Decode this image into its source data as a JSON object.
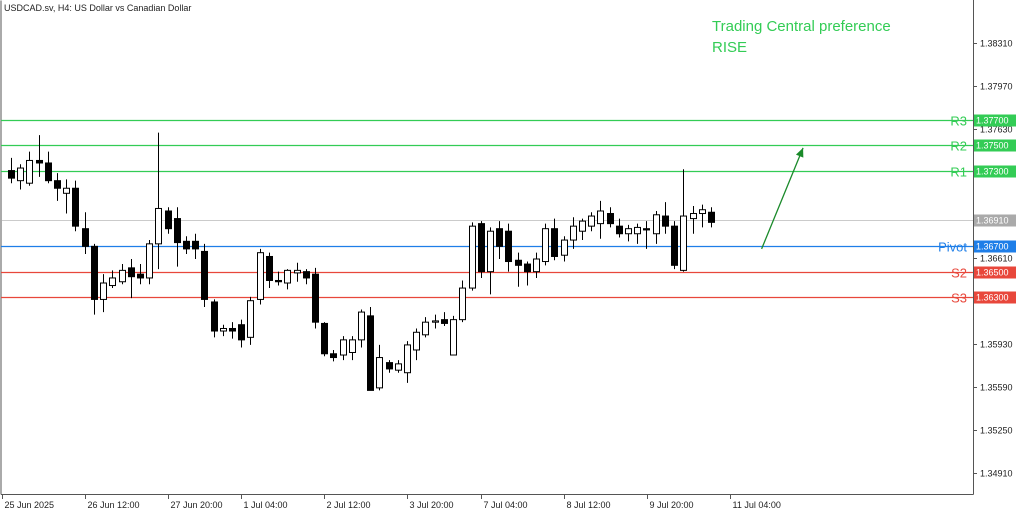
{
  "colors": {
    "resistance": "#33cc55",
    "pivot": "#1e7ee8",
    "support": "#e8473b",
    "arrow": "#1a8a2a",
    "preference_text": "#33cc55",
    "current_price": "#aaaaaa",
    "candle": "#000000"
  },
  "chart_data": {
    "type": "candlestick",
    "title": "USDCAD.sv, H4:  US Dollar vs Canadian Dollar",
    "preference": {
      "line1": "Trading Central preference",
      "line2": "RISE",
      "direction": "up"
    },
    "ylim": [
      1.3474,
      1.3865
    ],
    "y_ticks": [
      {
        "value": 1.3831,
        "label": "1.38310"
      },
      {
        "value": 1.3797,
        "label": "1.37970"
      },
      {
        "value": 1.3763,
        "label": "1.37630"
      },
      {
        "value": 1.3661,
        "label": "1.36610"
      },
      {
        "value": 1.3593,
        "label": "1.35930"
      },
      {
        "value": 1.3559,
        "label": "1.35590"
      },
      {
        "value": 1.3525,
        "label": "1.35250"
      },
      {
        "value": 1.3491,
        "label": "1.34910"
      }
    ],
    "x_labels": [
      {
        "index": 0,
        "label": "25 Jun 2025"
      },
      {
        "index": 9,
        "label": "26 Jun 12:00"
      },
      {
        "index": 18,
        "label": "27 Jun 20:00"
      },
      {
        "index": 26,
        "label": "1 Jul 04:00"
      },
      {
        "index": 35,
        "label": "2 Jul 12:00"
      },
      {
        "index": 44,
        "label": "3 Jul 20:00"
      },
      {
        "index": 52,
        "label": "7 Jul 04:00"
      },
      {
        "index": 61,
        "label": "8 Jul 12:00"
      },
      {
        "index": 70,
        "label": "9 Jul 20:00"
      },
      {
        "index": 79,
        "label": "11 Jul 04:00"
      }
    ],
    "levels": [
      {
        "name": "R3",
        "value": 1.377,
        "label": "1.37700",
        "kind": "resistance"
      },
      {
        "name": "R2",
        "value": 1.375,
        "label": "1.37500",
        "kind": "resistance"
      },
      {
        "name": "R1",
        "value": 1.373,
        "label": "1.37300",
        "kind": "resistance"
      },
      {
        "name": "Pivot",
        "value": 1.367,
        "label": "1.36700",
        "kind": "pivot"
      },
      {
        "name": "S2",
        "value": 1.365,
        "label": "1.36500",
        "kind": "support"
      },
      {
        "name": "S3",
        "value": 1.363,
        "label": "1.36300",
        "kind": "support"
      }
    ],
    "current_price": {
      "value": 1.3691,
      "label": "1.36910"
    },
    "arrow": {
      "from_index": 81.5,
      "from_value": 1.3668,
      "to_index": 86,
      "to_value": 1.3748
    },
    "candles": [
      {
        "o": 1.373,
        "h": 1.374,
        "l": 1.372,
        "c": 1.3724
      },
      {
        "o": 1.3722,
        "h": 1.3735,
        "l": 1.3715,
        "c": 1.3732
      },
      {
        "o": 1.372,
        "h": 1.3745,
        "l": 1.3718,
        "c": 1.3738
      },
      {
        "o": 1.3738,
        "h": 1.3758,
        "l": 1.3725,
        "c": 1.3736
      },
      {
        "o": 1.3736,
        "h": 1.3745,
        "l": 1.372,
        "c": 1.3722
      },
      {
        "o": 1.3722,
        "h": 1.3728,
        "l": 1.3706,
        "c": 1.3716
      },
      {
        "o": 1.3712,
        "h": 1.3723,
        "l": 1.3696,
        "c": 1.3716
      },
      {
        "o": 1.3716,
        "h": 1.3722,
        "l": 1.3682,
        "c": 1.3686
      },
      {
        "o": 1.3684,
        "h": 1.3697,
        "l": 1.3664,
        "c": 1.367
      },
      {
        "o": 1.367,
        "h": 1.3672,
        "l": 1.3616,
        "c": 1.3628
      },
      {
        "o": 1.3628,
        "h": 1.3648,
        "l": 1.3618,
        "c": 1.3641
      },
      {
        "o": 1.3639,
        "h": 1.3651,
        "l": 1.3637,
        "c": 1.3645
      },
      {
        "o": 1.3642,
        "h": 1.3656,
        "l": 1.364,
        "c": 1.3651
      },
      {
        "o": 1.3653,
        "h": 1.366,
        "l": 1.3629,
        "c": 1.3646
      },
      {
        "o": 1.3648,
        "h": 1.3656,
        "l": 1.364,
        "c": 1.3645
      },
      {
        "o": 1.3645,
        "h": 1.3675,
        "l": 1.364,
        "c": 1.3672
      },
      {
        "o": 1.3672,
        "h": 1.376,
        "l": 1.3652,
        "c": 1.37
      },
      {
        "o": 1.3698,
        "h": 1.3701,
        "l": 1.368,
        "c": 1.3684
      },
      {
        "o": 1.3692,
        "h": 1.3701,
        "l": 1.3654,
        "c": 1.3673
      },
      {
        "o": 1.3674,
        "h": 1.3678,
        "l": 1.3664,
        "c": 1.3668
      },
      {
        "o": 1.3674,
        "h": 1.368,
        "l": 1.366,
        "c": 1.3668
      },
      {
        "o": 1.3666,
        "h": 1.3672,
        "l": 1.3622,
        "c": 1.3628
      },
      {
        "o": 1.3626,
        "h": 1.3628,
        "l": 1.3598,
        "c": 1.3603
      },
      {
        "o": 1.3603,
        "h": 1.3608,
        "l": 1.3599,
        "c": 1.3605
      },
      {
        "o": 1.3605,
        "h": 1.361,
        "l": 1.3597,
        "c": 1.3603
      },
      {
        "o": 1.3608,
        "h": 1.3612,
        "l": 1.359,
        "c": 1.3596
      },
      {
        "o": 1.3598,
        "h": 1.363,
        "l": 1.3592,
        "c": 1.3627
      },
      {
        "o": 1.3628,
        "h": 1.3668,
        "l": 1.3624,
        "c": 1.3665
      },
      {
        "o": 1.3662,
        "h": 1.3665,
        "l": 1.3637,
        "c": 1.3643
      },
      {
        "o": 1.3643,
        "h": 1.365,
        "l": 1.3639,
        "c": 1.3642
      },
      {
        "o": 1.3641,
        "h": 1.3652,
        "l": 1.3636,
        "c": 1.3651
      },
      {
        "o": 1.3649,
        "h": 1.3657,
        "l": 1.3642,
        "c": 1.3651
      },
      {
        "o": 1.365,
        "h": 1.3652,
        "l": 1.364,
        "c": 1.3645
      },
      {
        "o": 1.3648,
        "h": 1.3653,
        "l": 1.3605,
        "c": 1.361
      },
      {
        "o": 1.3609,
        "h": 1.361,
        "l": 1.3583,
        "c": 1.3585
      },
      {
        "o": 1.3585,
        "h": 1.3588,
        "l": 1.3579,
        "c": 1.3582
      },
      {
        "o": 1.3584,
        "h": 1.3599,
        "l": 1.358,
        "c": 1.3596
      },
      {
        "o": 1.3586,
        "h": 1.3599,
        "l": 1.358,
        "c": 1.3596
      },
      {
        "o": 1.3596,
        "h": 1.362,
        "l": 1.359,
        "c": 1.3618
      },
      {
        "o": 1.3615,
        "h": 1.3622,
        "l": 1.3556,
        "c": 1.3556
      },
      {
        "o": 1.3558,
        "h": 1.3592,
        "l": 1.3556,
        "c": 1.3582
      },
      {
        "o": 1.3578,
        "h": 1.358,
        "l": 1.357,
        "c": 1.3573
      },
      {
        "o": 1.3572,
        "h": 1.358,
        "l": 1.357,
        "c": 1.3577
      },
      {
        "o": 1.357,
        "h": 1.3595,
        "l": 1.3562,
        "c": 1.3592
      },
      {
        "o": 1.3588,
        "h": 1.3605,
        "l": 1.358,
        "c": 1.3602
      },
      {
        "o": 1.36,
        "h": 1.3614,
        "l": 1.3598,
        "c": 1.361
      },
      {
        "o": 1.361,
        "h": 1.3616,
        "l": 1.3605,
        "c": 1.3611
      },
      {
        "o": 1.3612,
        "h": 1.3618,
        "l": 1.3607,
        "c": 1.3609
      },
      {
        "o": 1.3584,
        "h": 1.3615,
        "l": 1.3584,
        "c": 1.3612
      },
      {
        "o": 1.3612,
        "h": 1.3643,
        "l": 1.361,
        "c": 1.3637
      },
      {
        "o": 1.3637,
        "h": 1.3689,
        "l": 1.3635,
        "c": 1.3686
      },
      {
        "o": 1.3688,
        "h": 1.369,
        "l": 1.3645,
        "c": 1.365
      },
      {
        "o": 1.365,
        "h": 1.3685,
        "l": 1.3632,
        "c": 1.3682
      },
      {
        "o": 1.3684,
        "h": 1.369,
        "l": 1.366,
        "c": 1.367
      },
      {
        "o": 1.3682,
        "h": 1.3688,
        "l": 1.365,
        "c": 1.3658
      },
      {
        "o": 1.3659,
        "h": 1.3665,
        "l": 1.3638,
        "c": 1.3655
      },
      {
        "o": 1.3656,
        "h": 1.3658,
        "l": 1.3639,
        "c": 1.365
      },
      {
        "o": 1.365,
        "h": 1.3665,
        "l": 1.3645,
        "c": 1.366
      },
      {
        "o": 1.3658,
        "h": 1.3688,
        "l": 1.3655,
        "c": 1.3684
      },
      {
        "o": 1.3684,
        "h": 1.3692,
        "l": 1.3659,
        "c": 1.3662
      },
      {
        "o": 1.3663,
        "h": 1.3678,
        "l": 1.3658,
        "c": 1.3675
      },
      {
        "o": 1.3675,
        "h": 1.3693,
        "l": 1.3668,
        "c": 1.3686
      },
      {
        "o": 1.3682,
        "h": 1.3692,
        "l": 1.3675,
        "c": 1.369
      },
      {
        "o": 1.3686,
        "h": 1.3697,
        "l": 1.3682,
        "c": 1.3694
      },
      {
        "o": 1.3688,
        "h": 1.3706,
        "l": 1.3676,
        "c": 1.3698
      },
      {
        "o": 1.3696,
        "h": 1.3701,
        "l": 1.3685,
        "c": 1.3688
      },
      {
        "o": 1.3686,
        "h": 1.3692,
        "l": 1.3677,
        "c": 1.368
      },
      {
        "o": 1.368,
        "h": 1.3687,
        "l": 1.3674,
        "c": 1.3684
      },
      {
        "o": 1.368,
        "h": 1.3688,
        "l": 1.3672,
        "c": 1.3685
      },
      {
        "o": 1.3684,
        "h": 1.369,
        "l": 1.3668,
        "c": 1.3683
      },
      {
        "o": 1.368,
        "h": 1.3698,
        "l": 1.3672,
        "c": 1.3695
      },
      {
        "o": 1.3694,
        "h": 1.3705,
        "l": 1.368,
        "c": 1.3686
      },
      {
        "o": 1.3686,
        "h": 1.369,
        "l": 1.3652,
        "c": 1.3655
      },
      {
        "o": 1.3651,
        "h": 1.3731,
        "l": 1.365,
        "c": 1.3694
      },
      {
        "o": 1.3692,
        "h": 1.3702,
        "l": 1.368,
        "c": 1.3696
      },
      {
        "o": 1.3696,
        "h": 1.3703,
        "l": 1.3685,
        "c": 1.3699
      },
      {
        "o": 1.3697,
        "h": 1.3701,
        "l": 1.3685,
        "c": 1.3689
      }
    ]
  }
}
